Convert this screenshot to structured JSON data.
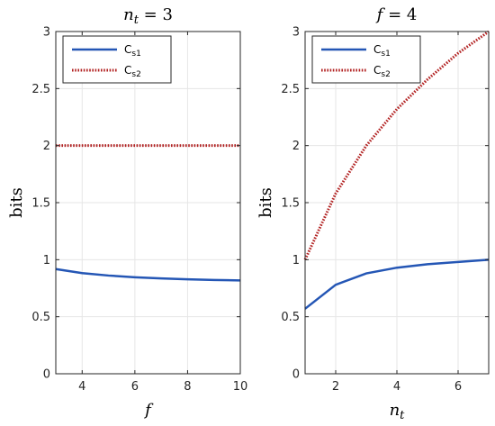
{
  "chart_data": [
    {
      "type": "line",
      "title": "n_t = 3",
      "title_main": "n",
      "title_sub": "t",
      "title_rest": " = 3",
      "xlabel": "f",
      "ylabel": "bits",
      "xlim": [
        3,
        10
      ],
      "ylim": [
        0,
        3
      ],
      "xticks": [
        4,
        6,
        8,
        10
      ],
      "yticks": [
        0,
        0.5,
        1,
        1.5,
        2,
        2.5,
        3
      ],
      "grid": true,
      "legend": "top-left",
      "series": [
        {
          "name": "Cs1",
          "name_main": "C",
          "name_sub": "s1",
          "color": "#2456b5",
          "style": "solid",
          "x": [
            3,
            4,
            5,
            6,
            7,
            8,
            9,
            10
          ],
          "y": [
            0.918,
            0.882,
            0.861,
            0.846,
            0.836,
            0.828,
            0.822,
            0.818
          ]
        },
        {
          "name": "Cs2",
          "name_main": "C",
          "name_sub": "s2",
          "color": "#b22222",
          "style": "dotted",
          "x": [
            3,
            4,
            5,
            6,
            7,
            8,
            9,
            10
          ],
          "y": [
            2,
            2,
            2,
            2,
            2,
            2,
            2,
            2
          ]
        }
      ]
    },
    {
      "type": "line",
      "title": "f = 4",
      "title_main": "f",
      "title_sub": "",
      "title_rest": " = 4",
      "xlabel": "n_t",
      "xlabel_main": "n",
      "xlabel_sub": "t",
      "ylabel": "bits",
      "xlim": [
        1,
        7
      ],
      "ylim": [
        0,
        3
      ],
      "xticks": [
        2,
        4,
        6
      ],
      "yticks": [
        0,
        0.5,
        1,
        1.5,
        2,
        2.5,
        3
      ],
      "grid": true,
      "legend": "top-left",
      "series": [
        {
          "name": "Cs1",
          "name_main": "C",
          "name_sub": "s1",
          "color": "#2456b5",
          "style": "solid",
          "x": [
            1,
            2,
            3,
            4,
            5,
            6,
            7
          ],
          "y": [
            0.57,
            0.78,
            0.88,
            0.93,
            0.96,
            0.98,
            1.0
          ]
        },
        {
          "name": "Cs2",
          "name_main": "C",
          "name_sub": "s2",
          "color": "#b22222",
          "style": "dotted",
          "x": [
            1,
            2,
            3,
            4,
            5,
            6,
            7
          ],
          "y": [
            1.0,
            1.58,
            2.0,
            2.32,
            2.58,
            2.81,
            3.0
          ]
        }
      ]
    }
  ]
}
